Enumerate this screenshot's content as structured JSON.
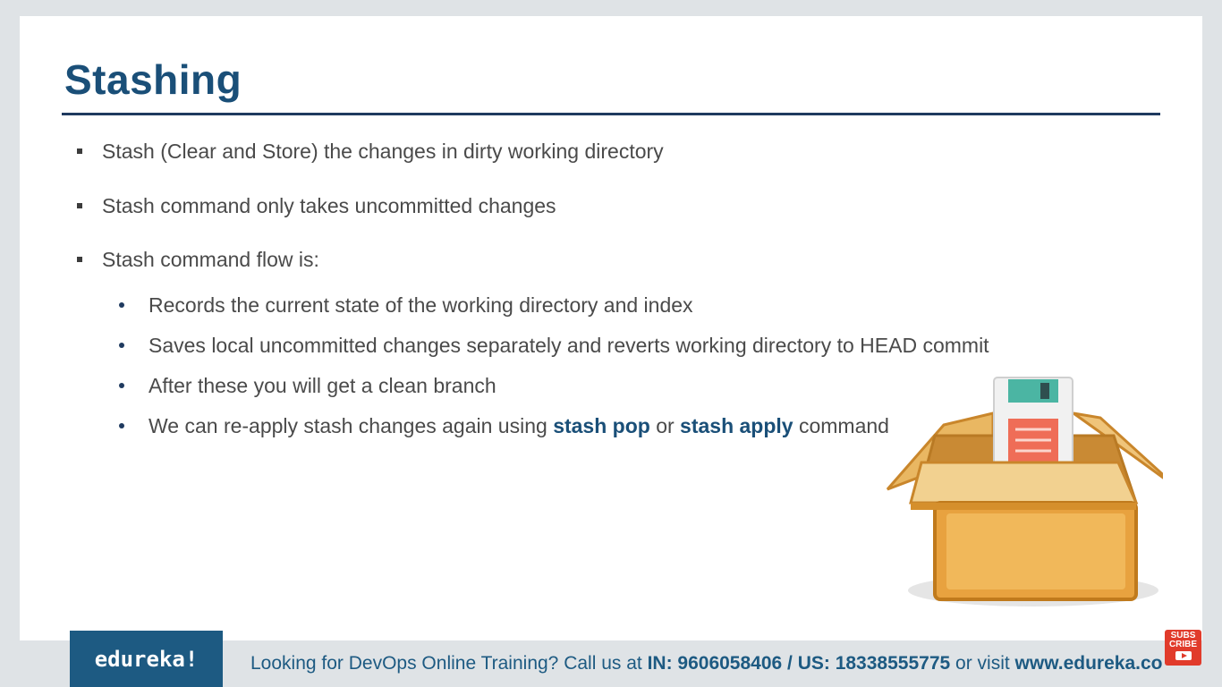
{
  "slide": {
    "title": "Stashing",
    "bullets": [
      "Stash (Clear and Store) the changes in dirty working directory",
      "Stash command only takes uncommitted changes",
      "Stash command flow is:"
    ],
    "sub_bullets": [
      "Records the current state of the working directory and index",
      "Saves local uncommitted changes separately and reverts working directory to HEAD commit",
      "After these you will get a clean branch"
    ],
    "last_sub": {
      "prefix": "We can re-apply stash changes again using ",
      "kw1": "stash pop",
      "mid": " or ",
      "kw2": "stash apply",
      "suffix": " command"
    },
    "illustration": "cardboard-box-with-floppy-disk"
  },
  "footer": {
    "logo": "edureka!",
    "text_prefix": "Looking for DevOps Online Training? Call us at ",
    "phones": "IN: 9606058406 / US: 18338555775",
    "text_mid": " or visit ",
    "website": "www.edureka.co"
  },
  "subscribe": {
    "line1": "SUBS",
    "line2": "CRIBE",
    "icon": "play-icon"
  },
  "colors": {
    "title": "#1a4f78",
    "accent": "#1d5a82",
    "body_text": "#4a4a4a",
    "subscribe": "#e13b2b"
  }
}
